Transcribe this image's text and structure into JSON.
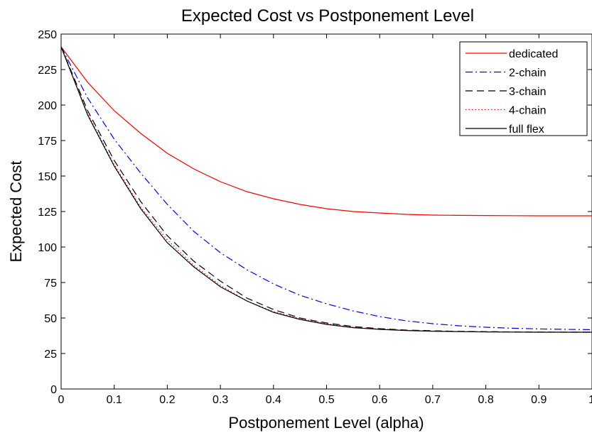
{
  "chart_data": {
    "type": "line",
    "title": "Expected Cost vs Postponement Level",
    "xlabel": "Postponement Level (alpha)",
    "ylabel": "Expected Cost",
    "xlim": [
      0,
      1
    ],
    "ylim": [
      0,
      250
    ],
    "xticks": [
      0,
      0.1,
      0.2,
      0.3,
      0.4,
      0.5,
      0.6,
      0.7,
      0.8,
      0.9,
      1
    ],
    "xtick_labels": [
      "0",
      "0.1",
      "0.2",
      "0.3",
      "0.4",
      "0.5",
      "0.6",
      "0.7",
      "0.8",
      "0.9",
      "1"
    ],
    "yticks": [
      0,
      25,
      50,
      75,
      100,
      125,
      150,
      175,
      200,
      225,
      250
    ],
    "ytick_labels": [
      "0",
      "25",
      "50",
      "75",
      "100",
      "125",
      "150",
      "175",
      "200",
      "225",
      "250"
    ],
    "grid": false,
    "legend_position": "top-right",
    "x": [
      0,
      0.05,
      0.1,
      0.15,
      0.2,
      0.25,
      0.3,
      0.35,
      0.4,
      0.45,
      0.5,
      0.55,
      0.6,
      0.65,
      0.7,
      0.75,
      0.8,
      0.85,
      0.9,
      0.95,
      1
    ],
    "series": [
      {
        "name": "dedicated",
        "color": "#ff0000",
        "dash": "solid",
        "values": [
          241,
          216,
          196,
          180,
          166,
          155,
          146,
          139,
          134,
          130,
          127,
          125,
          124,
          123,
          122.5,
          122.3,
          122.2,
          122.1,
          122,
          122,
          122
        ]
      },
      {
        "name": "2-chain",
        "color": "#0000ff",
        "dash": "dashdot",
        "values": [
          241,
          205,
          176,
          152,
          130,
          111,
          96,
          84,
          74,
          66,
          60,
          55,
          51,
          48,
          46,
          44.5,
          43.5,
          42.8,
          42.3,
          42,
          41.8
        ]
      },
      {
        "name": "3-chain",
        "color": "#000000",
        "dash": "dashed",
        "values": [
          241,
          196,
          161,
          132,
          108,
          90,
          76,
          64,
          56,
          50,
          46.5,
          44,
          42.5,
          41.5,
          41,
          40.6,
          40.4,
          40.2,
          40.1,
          40,
          40
        ]
      },
      {
        "name": "4-chain",
        "color": "#ff0000",
        "dash": "dotted",
        "values": [
          241,
          194,
          158,
          128,
          105,
          87,
          73,
          62,
          54.5,
          49.5,
          46,
          43.5,
          42.2,
          41.3,
          40.8,
          40.5,
          40.3,
          40.1,
          40,
          40,
          40
        ]
      },
      {
        "name": "full flex",
        "color": "#000000",
        "dash": "solid",
        "values": [
          241,
          193,
          157,
          127,
          103,
          86,
          72,
          62,
          54,
          49,
          45.5,
          43.2,
          42,
          41.2,
          40.7,
          40.4,
          40.2,
          40.1,
          40,
          40,
          40
        ]
      }
    ]
  }
}
